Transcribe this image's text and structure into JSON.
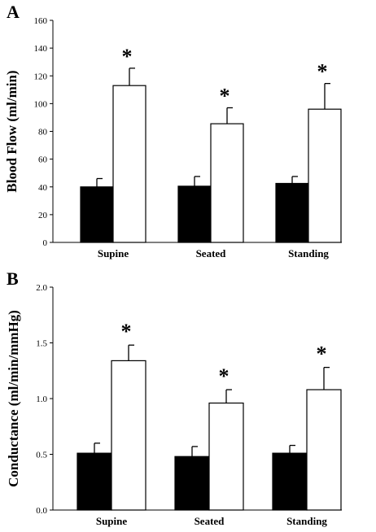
{
  "chart_data": [
    {
      "type": "bar",
      "panel": "A",
      "ylabel": "Blood Flow (ml/min)",
      "ylim": [
        0,
        160
      ],
      "yticks": [
        0,
        20,
        40,
        60,
        80,
        100,
        120,
        140,
        160
      ],
      "ytick_labels": [
        "0",
        "20",
        "40",
        "60",
        "80",
        "100",
        "120",
        "140",
        "160"
      ],
      "categories": [
        "Supine",
        "Seated",
        "Standing"
      ],
      "series": [
        {
          "color": "#000000",
          "values": [
            40,
            40.5,
            42.5
          ],
          "errors": [
            6,
            7,
            5
          ]
        },
        {
          "color": "#ffffff",
          "values": [
            113,
            85.5,
            96
          ],
          "errors": [
            12.5,
            11.5,
            18.5
          ]
        }
      ],
      "annotations": [
        "*",
        "*",
        "*"
      ]
    },
    {
      "type": "bar",
      "panel": "B",
      "ylabel": "Conductance (ml/min/mmHg)",
      "ylim": [
        0,
        2.0
      ],
      "yticks": [
        0,
        0.5,
        1.0,
        1.5,
        2.0
      ],
      "ytick_labels": [
        "0.0",
        "0.5",
        "1.0",
        "1.5",
        "2.0"
      ],
      "categories": [
        "Supine",
        "Seated",
        "Standing"
      ],
      "series": [
        {
          "color": "#000000",
          "values": [
            0.51,
            0.48,
            0.51
          ],
          "errors": [
            0.09,
            0.09,
            0.07
          ]
        },
        {
          "color": "#ffffff",
          "values": [
            1.34,
            0.96,
            1.08
          ],
          "errors": [
            0.14,
            0.12,
            0.2
          ]
        }
      ],
      "annotations": [
        "*",
        "*",
        "*"
      ]
    }
  ]
}
